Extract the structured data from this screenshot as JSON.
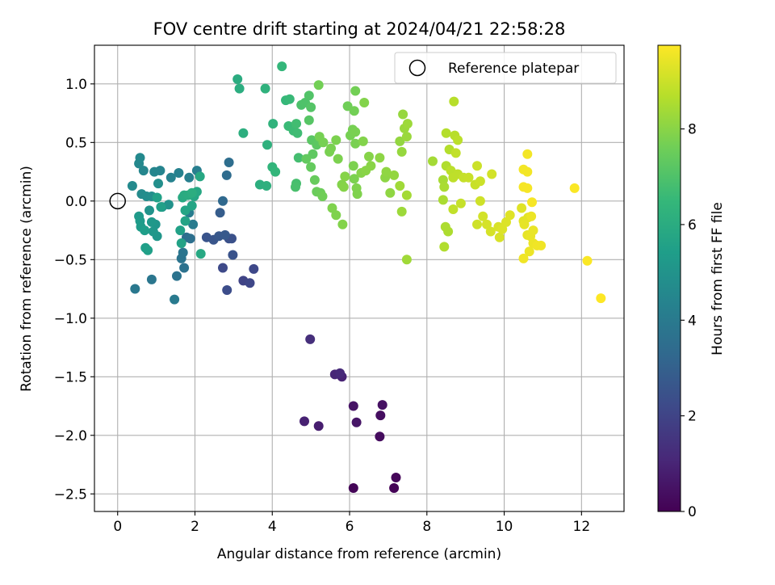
{
  "chart_data": {
    "type": "scatter",
    "title": "FOV centre drift starting at 2024/04/21 22:58:28",
    "xlabel": "Angular distance from reference (arcmin)",
    "ylabel": "Rotation from reference (arcmin)",
    "xlim": [
      -0.6,
      13.1
    ],
    "ylim": [
      -2.65,
      1.33
    ],
    "xticks": [
      0,
      2,
      4,
      6,
      8,
      10,
      12
    ],
    "xtick_labels": [
      "0",
      "2",
      "4",
      "6",
      "8",
      "10",
      "12"
    ],
    "yticks": [
      -2.5,
      -2.0,
      -1.5,
      -1.0,
      -0.5,
      0.0,
      0.5,
      1.0
    ],
    "ytick_labels": [
      "−2.5",
      "−2.0",
      "−1.5",
      "−1.0",
      "−0.5",
      "0.0",
      "0.5",
      "1.0"
    ],
    "grid": true,
    "legend": {
      "placement": "top-right",
      "entries": [
        "Reference platepar"
      ]
    },
    "colorbar": {
      "label": "Hours from first FF file",
      "range": [
        0,
        9.75
      ],
      "ticks": [
        0,
        2,
        4,
        6,
        8
      ],
      "tick_labels": [
        "0",
        "2",
        "4",
        "6",
        "8"
      ],
      "colormap": "viridis",
      "colormap_stops": [
        "#440154",
        "#482878",
        "#3e4989",
        "#31688e",
        "#26828e",
        "#1f9e89",
        "#35b779",
        "#6ece58",
        "#b5de2b",
        "#fde725"
      ]
    },
    "reference": {
      "x": 0,
      "y": 0
    },
    "points": [
      [
        7.15,
        -2.45,
        0.05
      ],
      [
        6.1,
        -2.45,
        0.1
      ],
      [
        7.2,
        -2.36,
        0.15
      ],
      [
        6.78,
        -2.01,
        0.3
      ],
      [
        6.8,
        -1.83,
        0.35
      ],
      [
        6.85,
        -1.74,
        0.45
      ],
      [
        6.1,
        -1.75,
        0.5
      ],
      [
        6.18,
        -1.89,
        0.55
      ],
      [
        5.2,
        -1.92,
        0.8
      ],
      [
        4.83,
        -1.88,
        0.9
      ],
      [
        5.8,
        -1.5,
        0.95
      ],
      [
        5.62,
        -1.48,
        1.05
      ],
      [
        5.75,
        -1.47,
        1.15
      ],
      [
        4.98,
        -1.18,
        1.3
      ],
      [
        3.25,
        -0.68,
        2.0
      ],
      [
        3.42,
        -0.7,
        2.1
      ],
      [
        3.52,
        -0.58,
        2.15
      ],
      [
        2.72,
        -0.57,
        2.2
      ],
      [
        2.83,
        -0.76,
        2.3
      ],
      [
        2.88,
        -0.32,
        2.4
      ],
      [
        2.95,
        -0.32,
        2.45
      ],
      [
        2.98,
        -0.46,
        2.5
      ],
      [
        2.3,
        -0.31,
        2.55
      ],
      [
        2.48,
        -0.33,
        2.6
      ],
      [
        2.62,
        -0.3,
        2.7
      ],
      [
        2.78,
        -0.29,
        2.75
      ],
      [
        2.65,
        -0.1,
        2.85
      ],
      [
        2.72,
        0.0,
        3.3
      ],
      [
        2.82,
        0.22,
        3.4
      ],
      [
        2.88,
        0.33,
        3.5
      ],
      [
        1.78,
        -0.31,
        3.5
      ],
      [
        1.88,
        -0.32,
        3.6
      ],
      [
        1.72,
        -0.57,
        3.65
      ],
      [
        1.53,
        -0.64,
        3.7
      ],
      [
        1.65,
        -0.49,
        3.75
      ],
      [
        1.69,
        -0.44,
        3.8
      ],
      [
        0.88,
        -0.67,
        3.85
      ],
      [
        0.45,
        -0.75,
        3.9
      ],
      [
        1.47,
        -0.84,
        4.0
      ],
      [
        1.95,
        -0.2,
        4.05
      ],
      [
        1.85,
        -0.1,
        4.1
      ],
      [
        2.05,
        0.26,
        4.15
      ],
      [
        1.85,
        0.2,
        4.2
      ],
      [
        1.58,
        0.24,
        4.3
      ],
      [
        1.38,
        0.2,
        4.35
      ],
      [
        1.1,
        0.26,
        4.4
      ],
      [
        0.95,
        0.25,
        4.45
      ],
      [
        0.67,
        0.26,
        4.5
      ],
      [
        0.55,
        0.32,
        4.55
      ],
      [
        0.58,
        0.37,
        4.6
      ],
      [
        0.38,
        0.13,
        4.65
      ],
      [
        0.62,
        0.06,
        4.7
      ],
      [
        0.75,
        0.04,
        4.75
      ],
      [
        0.88,
        0.04,
        4.8
      ],
      [
        1.05,
        0.15,
        4.85
      ],
      [
        1.15,
        -0.05,
        4.9
      ],
      [
        1.32,
        -0.03,
        4.95
      ],
      [
        0.82,
        -0.08,
        5.0
      ],
      [
        0.98,
        -0.2,
        5.05
      ],
      [
        1.02,
        -0.3,
        5.1
      ],
      [
        0.92,
        -0.26,
        5.15
      ],
      [
        0.88,
        -0.18,
        5.2
      ],
      [
        0.55,
        -0.13,
        5.25
      ],
      [
        0.58,
        -0.17,
        5.3
      ],
      [
        0.6,
        -0.22,
        5.35
      ],
      [
        0.7,
        -0.25,
        5.4
      ],
      [
        0.72,
        -0.4,
        5.45
      ],
      [
        0.78,
        -0.42,
        5.5
      ],
      [
        1.12,
        -0.05,
        5.5
      ],
      [
        1.02,
        0.03,
        5.55
      ],
      [
        1.62,
        -0.25,
        5.55
      ],
      [
        1.65,
        -0.36,
        5.6
      ],
      [
        1.75,
        -0.17,
        5.65
      ],
      [
        1.75,
        -0.08,
        5.7
      ],
      [
        1.92,
        -0.04,
        5.7
      ],
      [
        1.98,
        0.04,
        5.75
      ],
      [
        2.05,
        0.08,
        5.8
      ],
      [
        2.13,
        0.21,
        5.8
      ],
      [
        2.15,
        -0.45,
        5.85
      ],
      [
        1.68,
        0.03,
        5.9
      ],
      [
        1.72,
        0.05,
        5.95
      ],
      [
        1.82,
        0.05,
        6.0
      ],
      [
        1.92,
        0.07,
        6.05
      ],
      [
        3.1,
        1.04,
        6.0
      ],
      [
        3.15,
        0.96,
        6.05
      ],
      [
        3.25,
        0.58,
        6.1
      ],
      [
        3.68,
        0.14,
        6.1
      ],
      [
        3.85,
        0.13,
        6.15
      ],
      [
        3.87,
        0.48,
        6.2
      ],
      [
        3.82,
        0.96,
        6.25
      ],
      [
        4.02,
        0.66,
        6.3
      ],
      [
        4.0,
        0.29,
        6.35
      ],
      [
        4.08,
        0.25,
        6.4
      ],
      [
        4.25,
        1.15,
        6.45
      ],
      [
        4.35,
        0.86,
        6.5
      ],
      [
        4.45,
        0.87,
        6.55
      ],
      [
        4.42,
        0.64,
        6.6
      ],
      [
        4.55,
        0.6,
        6.65
      ],
      [
        4.65,
        0.58,
        6.7
      ],
      [
        4.62,
        0.66,
        6.75
      ],
      [
        4.68,
        0.37,
        6.8
      ],
      [
        4.62,
        0.15,
        6.85
      ],
      [
        4.6,
        0.12,
        6.9
      ],
      [
        4.75,
        0.82,
        6.95
      ],
      [
        4.85,
        0.84,
        7.0
      ],
      [
        4.95,
        0.9,
        7.05
      ],
      [
        5.0,
        0.8,
        7.1
      ],
      [
        4.95,
        0.69,
        7.15
      ],
      [
        5.02,
        0.52,
        7.2
      ],
      [
        5.15,
        0.48,
        7.25
      ],
      [
        5.05,
        0.4,
        7.3
      ],
      [
        4.88,
        0.36,
        7.35
      ],
      [
        5.0,
        0.29,
        7.4
      ],
      [
        5.1,
        0.18,
        7.45
      ],
      [
        5.15,
        0.08,
        7.5
      ],
      [
        5.25,
        0.07,
        7.55
      ],
      [
        5.3,
        0.04,
        7.6
      ],
      [
        5.2,
        0.99,
        7.65
      ],
      [
        5.22,
        0.55,
        7.7
      ],
      [
        5.32,
        0.5,
        7.7
      ],
      [
        5.48,
        0.42,
        7.75
      ],
      [
        5.52,
        0.45,
        7.75
      ],
      [
        5.65,
        0.52,
        7.8
      ],
      [
        5.7,
        0.36,
        7.8
      ],
      [
        5.55,
        -0.06,
        7.85
      ],
      [
        5.65,
        -0.12,
        7.85
      ],
      [
        5.82,
        -0.2,
        7.9
      ],
      [
        5.8,
        0.14,
        7.9
      ],
      [
        5.88,
        0.21,
        7.95
      ],
      [
        5.85,
        0.12,
        7.95
      ],
      [
        5.95,
        0.81,
        7.6
      ],
      [
        6.15,
        0.94,
        7.65
      ],
      [
        6.12,
        0.77,
        7.65
      ],
      [
        6.08,
        0.61,
        7.7
      ],
      [
        6.02,
        0.56,
        7.7
      ],
      [
        6.15,
        0.59,
        7.75
      ],
      [
        6.15,
        0.49,
        7.75
      ],
      [
        6.1,
        0.3,
        7.8
      ],
      [
        6.12,
        0.19,
        7.8
      ],
      [
        6.18,
        0.11,
        7.85
      ],
      [
        6.2,
        0.06,
        7.85
      ],
      [
        6.38,
        0.84,
        7.9
      ],
      [
        6.35,
        0.51,
        7.9
      ],
      [
        6.5,
        0.38,
        7.95
      ],
      [
        6.3,
        0.24,
        7.95
      ],
      [
        6.42,
        0.26,
        8.0
      ],
      [
        6.55,
        0.3,
        8.0
      ],
      [
        6.78,
        0.37,
        8.05
      ],
      [
        6.92,
        0.2,
        8.05
      ],
      [
        6.95,
        0.25,
        8.1
      ],
      [
        7.05,
        0.07,
        8.1
      ],
      [
        7.15,
        0.22,
        8.15
      ],
      [
        7.3,
        0.51,
        8.15
      ],
      [
        7.35,
        0.42,
        8.2
      ],
      [
        7.38,
        0.74,
        8.2
      ],
      [
        7.42,
        0.62,
        8.25
      ],
      [
        7.48,
        0.55,
        8.25
      ],
      [
        7.5,
        0.66,
        8.3
      ],
      [
        7.35,
        -0.09,
        8.3
      ],
      [
        7.48,
        -0.5,
        8.35
      ],
      [
        7.3,
        0.13,
        8.35
      ],
      [
        7.48,
        0.05,
        8.4
      ],
      [
        8.15,
        0.34,
        8.4
      ],
      [
        8.42,
        0.18,
        8.45
      ],
      [
        8.45,
        0.12,
        8.5
      ],
      [
        8.42,
        0.01,
        8.5
      ],
      [
        8.48,
        -0.22,
        8.55
      ],
      [
        8.55,
        -0.26,
        8.55
      ],
      [
        8.45,
        -0.39,
        8.6
      ],
      [
        8.5,
        0.3,
        8.6
      ],
      [
        8.58,
        0.44,
        8.65
      ],
      [
        8.5,
        0.58,
        8.65
      ],
      [
        8.7,
        0.85,
        8.7
      ],
      [
        8.72,
        0.56,
        8.7
      ],
      [
        8.8,
        0.52,
        8.75
      ],
      [
        8.62,
        0.26,
        8.75
      ],
      [
        8.68,
        0.2,
        8.8
      ],
      [
        8.8,
        0.23,
        8.8
      ],
      [
        8.75,
        0.41,
        8.85
      ],
      [
        8.68,
        -0.07,
        8.85
      ],
      [
        8.88,
        -0.02,
        8.9
      ],
      [
        8.95,
        0.2,
        8.9
      ],
      [
        9.08,
        0.2,
        8.95
      ],
      [
        9.25,
        0.14,
        8.95
      ],
      [
        9.3,
        0.3,
        9.0
      ],
      [
        9.38,
        0.17,
        9.0
      ],
      [
        9.38,
        0.0,
        9.05
      ],
      [
        9.3,
        -0.2,
        9.05
      ],
      [
        9.45,
        -0.13,
        9.1
      ],
      [
        9.68,
        0.23,
        9.1
      ],
      [
        9.55,
        -0.2,
        9.15
      ],
      [
        9.65,
        -0.26,
        9.15
      ],
      [
        9.85,
        -0.22,
        9.2
      ],
      [
        9.88,
        -0.31,
        9.2
      ],
      [
        9.95,
        -0.24,
        9.25
      ],
      [
        10.05,
        -0.18,
        9.25
      ],
      [
        10.15,
        -0.12,
        9.3
      ],
      [
        10.45,
        -0.06,
        9.3
      ],
      [
        10.5,
        -0.17,
        9.35
      ],
      [
        10.62,
        -0.14,
        9.35
      ],
      [
        10.52,
        -0.2,
        9.4
      ],
      [
        10.6,
        -0.29,
        9.4
      ],
      [
        10.68,
        -0.3,
        9.45
      ],
      [
        10.75,
        -0.25,
        9.45
      ],
      [
        10.7,
        -0.13,
        9.5
      ],
      [
        10.75,
        -0.36,
        9.5
      ],
      [
        10.65,
        -0.43,
        9.5
      ],
      [
        10.5,
        -0.49,
        9.55
      ],
      [
        10.85,
        -0.38,
        9.55
      ],
      [
        10.95,
        -0.38,
        9.55
      ],
      [
        10.5,
        0.27,
        9.6
      ],
      [
        10.6,
        0.25,
        9.6
      ],
      [
        10.6,
        0.4,
        9.6
      ],
      [
        10.5,
        0.12,
        9.65
      ],
      [
        10.6,
        0.11,
        9.65
      ],
      [
        10.72,
        -0.01,
        9.65
      ],
      [
        11.82,
        0.11,
        9.7
      ],
      [
        12.15,
        -0.51,
        9.7
      ],
      [
        12.5,
        -0.83,
        9.75
      ]
    ]
  }
}
